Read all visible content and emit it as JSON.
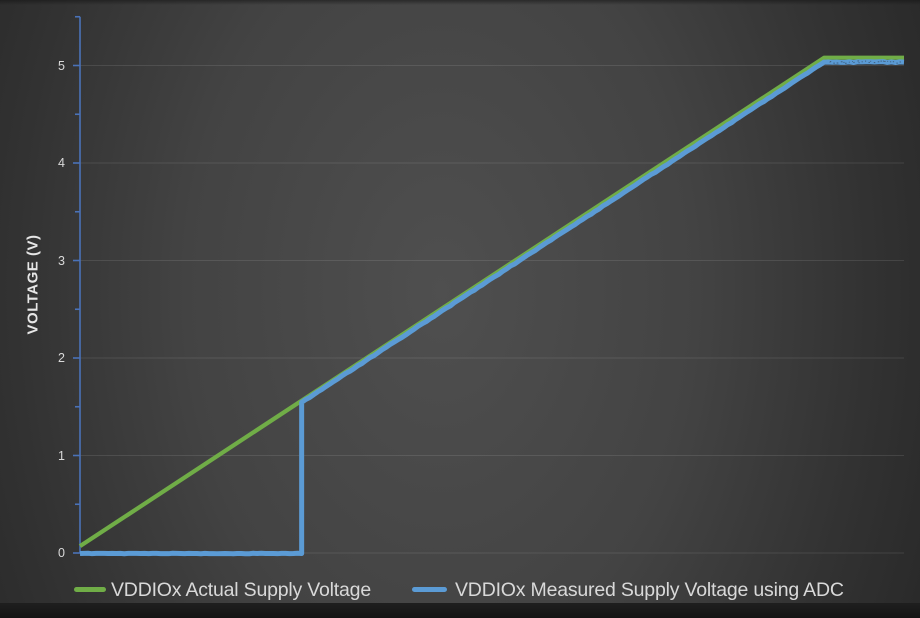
{
  "chart_data": {
    "type": "line",
    "title": "",
    "xlabel": "",
    "ylabel": "VOLTAGE (V)",
    "x_range": [
      0,
      100
    ],
    "ylim": [
      0,
      5.5
    ],
    "y_ticks": [
      0,
      1,
      2,
      3,
      4,
      5
    ],
    "y_minor_step": 0.5,
    "grid": "horizontal-major-only",
    "legend_position": "bottom",
    "axis_color": "#4a72b8",
    "gridline_color": "rgba(255,255,255,0.10)",
    "tick_label_color": "#d9d9d9",
    "series": [
      {
        "name": "VDDIOx Actual Supply Voltage",
        "color": "#70ad47",
        "points": [
          [
            0,
            0.07
          ],
          [
            90.3,
            5.08
          ],
          [
            100,
            5.08
          ]
        ],
        "segment_noise": [
          0,
          0
        ]
      },
      {
        "name": "VDDIOx Measured Supply Voltage using ADC",
        "color": "#5b9bd5",
        "points": [
          [
            0,
            0.01
          ],
          [
            26.9,
            0.01
          ],
          [
            26.9,
            1.56
          ],
          [
            90.3,
            5.05
          ],
          [
            100,
            5.05
          ]
        ],
        "segment_noise": [
          0.003,
          0,
          0.004,
          0.005
        ]
      }
    ]
  }
}
